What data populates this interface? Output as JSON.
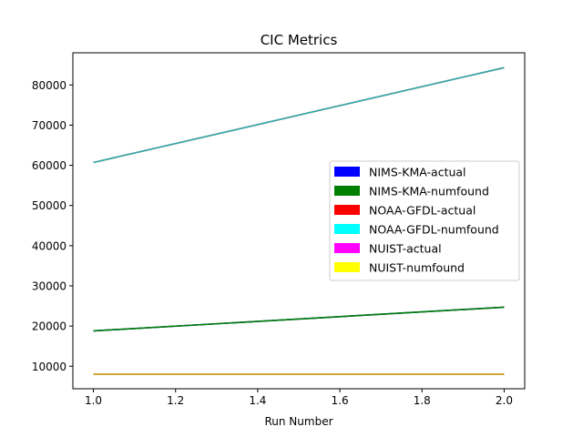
{
  "chart_data": {
    "type": "line",
    "title": "CIC Metrics",
    "xlabel": "Run Number",
    "ylabel": "",
    "x": [
      1.0,
      2.0
    ],
    "xlim": [
      0.95,
      2.05
    ],
    "ylim": [
      4400,
      88000
    ],
    "xticks": [
      1.0,
      1.2,
      1.4,
      1.6,
      1.8,
      2.0
    ],
    "xtick_labels": [
      "1.0",
      "1.2",
      "1.4",
      "1.6",
      "1.8",
      "2.0"
    ],
    "yticks": [
      10000,
      20000,
      30000,
      40000,
      50000,
      60000,
      70000,
      80000
    ],
    "ytick_labels": [
      "10000",
      "20000",
      "30000",
      "40000",
      "50000",
      "60000",
      "70000",
      "80000"
    ],
    "grid": false,
    "legend_position": "center-right",
    "series": [
      {
        "name": "NIMS-KMA-actual",
        "color": "#0000ff",
        "values": [
          18800,
          24700
        ]
      },
      {
        "name": "NIMS-KMA-numfound",
        "color": "#008000",
        "values": [
          18800,
          24700
        ]
      },
      {
        "name": "NOAA-GFDL-actual",
        "color": "#ff0000",
        "values": [
          60700,
          84300
        ]
      },
      {
        "name": "NOAA-GFDL-numfound",
        "color": "#00ffff",
        "values": [
          60700,
          84300
        ]
      },
      {
        "name": "NUIST-actual",
        "color": "#ff00ff",
        "values": [
          8000,
          8000
        ]
      },
      {
        "name": "NUIST-numfound",
        "color": "#ffff00",
        "values": [
          8000,
          8000
        ]
      }
    ],
    "rendered_line_colors": {
      "NOAA-GFDL-numfound": "#2ab0b0",
      "NUIST-numfound": "#c8b400"
    }
  }
}
